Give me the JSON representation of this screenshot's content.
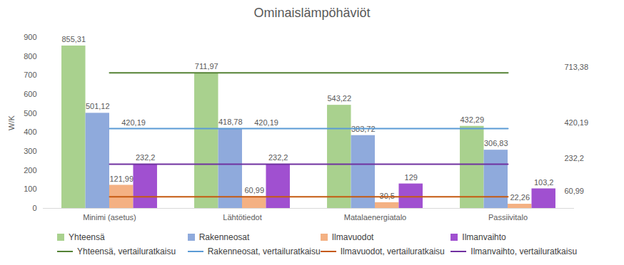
{
  "chart_data": {
    "type": "bar",
    "title": "Ominaislämpöhäviöt",
    "y_label": "W/K",
    "categories": [
      "Minimi (asetus)",
      "Lähtötiedot",
      "Matalaenergiatalo",
      "Passiivitalo"
    ],
    "ylim": [
      0,
      900
    ],
    "yticks": [
      0,
      100,
      200,
      300,
      400,
      500,
      600,
      700,
      800,
      900
    ],
    "grid": false,
    "legend": "bottom",
    "data_labels": true,
    "series": [
      {
        "name": "Yhteensä",
        "type": "bar",
        "color": "#a9d18e",
        "values": [
          855.31,
          711.97,
          543.22,
          432.29
        ],
        "value_labels": [
          "855,31",
          "711,97",
          "543,22",
          "432,29"
        ]
      },
      {
        "name": "Rakenneosat",
        "type": "bar",
        "color": "#8faadc",
        "values": [
          501.12,
          418.78,
          383.72,
          306.83
        ],
        "value_labels": [
          "501,12",
          "418,78",
          "383,72",
          "306,83"
        ]
      },
      {
        "name": "Ilmavuodot",
        "type": "bar",
        "color": "#f4b183",
        "values": [
          121.99,
          60.99,
          30.5,
          22.26
        ],
        "value_labels": [
          "121,99",
          "60,99",
          "30,5",
          "22,26"
        ]
      },
      {
        "name": "Ilmanvaihto",
        "type": "bar",
        "color": "#a050d0",
        "values": [
          232.2,
          232.2,
          129,
          103.2
        ],
        "value_labels": [
          "232,2",
          "232,2",
          "129",
          "103,2"
        ]
      },
      {
        "name": "Yhteensä, vertailuratkaisu",
        "type": "line",
        "color": "#548235",
        "values": [
          713.38,
          713.38,
          713.38,
          713.38
        ],
        "value_labels": [
          null,
          null,
          null,
          "713,38"
        ]
      },
      {
        "name": "Rakenneosat, vertailuratkaisu",
        "type": "line",
        "color": "#5b9bd5",
        "values": [
          420.19,
          420.19,
          420.19,
          420.19
        ],
        "value_labels": [
          "420,19",
          "420,19",
          null,
          "420,19"
        ]
      },
      {
        "name": "Ilmavuodot, vertailuratkaisu",
        "type": "line",
        "color": "#c55a11",
        "values": [
          60.99,
          60.99,
          60.99,
          60.99
        ],
        "value_labels": [
          null,
          null,
          null,
          "60,99"
        ]
      },
      {
        "name": "Ilmanvaihto, vertailuratkaisu",
        "type": "line",
        "color": "#7030a0",
        "values": [
          232.2,
          232.2,
          232.2,
          232.2
        ],
        "value_labels": [
          null,
          null,
          null,
          "232,2"
        ]
      }
    ]
  }
}
